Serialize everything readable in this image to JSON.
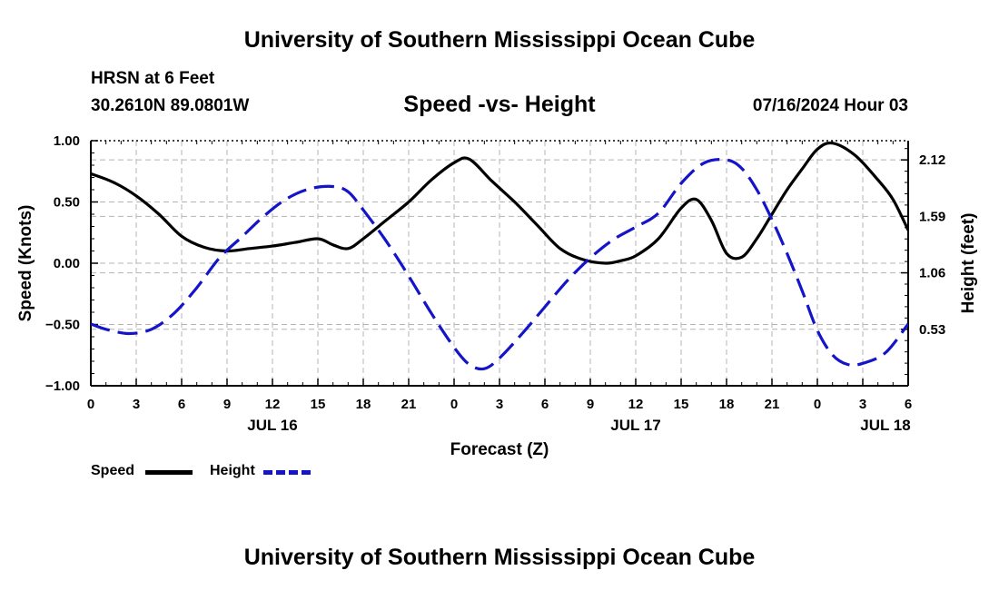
{
  "header": {
    "title": "University of Southern Mississippi Ocean Cube",
    "station": "HRSN at 6 Feet",
    "coords": "30.2610N  89.0801W",
    "subtitle": "Speed -vs- Height",
    "datetime": "07/16/2024 Hour 03"
  },
  "footer": {
    "title": "University of Southern Mississippi Ocean Cube"
  },
  "colors": {
    "speed": "#000000",
    "height": "#1414c8",
    "grid": "#b4b4b4"
  },
  "chart_data": {
    "type": "line",
    "title": "Speed -vs- Height",
    "xlabel": "Forecast (Z)",
    "ylabel": "Speed (Knots)",
    "y2label": "Height (feet)",
    "xlim": [
      0,
      54
    ],
    "ylim": [
      -1.0,
      1.0
    ],
    "y2lim": [
      0.0,
      2.3
    ],
    "x_tick_values": [
      0,
      3,
      6,
      9,
      12,
      15,
      18,
      21,
      24,
      27,
      30,
      33,
      36,
      39,
      42,
      45,
      48,
      51,
      54
    ],
    "x_tick_labels": [
      "0",
      "3",
      "6",
      "9",
      "12",
      "15",
      "18",
      "21",
      "0",
      "3",
      "6",
      "9",
      "12",
      "15",
      "18",
      "21",
      "0",
      "3",
      "6"
    ],
    "y_ticks": [
      1.0,
      0.5,
      0.0,
      -0.5,
      -1.0
    ],
    "y_tick_labels": [
      "1.00",
      "0.50",
      "0.00",
      "−0.50",
      "−1.00"
    ],
    "y2_ticks": [
      2.12,
      1.59,
      1.06,
      0.53
    ],
    "y2_tick_labels": [
      "2.12",
      "1.59",
      "1.06",
      "0.53"
    ],
    "date_labels": [
      {
        "x": 12,
        "label": "JUL 16"
      },
      {
        "x": 36,
        "label": "JUL 17"
      },
      {
        "x": 52.5,
        "label": "JUL 18"
      }
    ],
    "series": [
      {
        "name": "Speed",
        "axis": "left",
        "style": "solid",
        "x": [
          0,
          1.5,
          3,
          4.5,
          6,
          7.5,
          9,
          10.5,
          12,
          13.5,
          15,
          16,
          17,
          18,
          19.5,
          21,
          22.5,
          24,
          25,
          26.5,
          28,
          29.5,
          31,
          32.5,
          34,
          35,
          36,
          37.5,
          39,
          40,
          41,
          42,
          43,
          44,
          45,
          46,
          47,
          48,
          49,
          50.5,
          52,
          53,
          54
        ],
        "values": [
          0.73,
          0.66,
          0.55,
          0.4,
          0.22,
          0.13,
          0.1,
          0.12,
          0.14,
          0.17,
          0.2,
          0.15,
          0.12,
          0.2,
          0.35,
          0.5,
          0.68,
          0.82,
          0.85,
          0.67,
          0.5,
          0.31,
          0.12,
          0.03,
          0.0,
          0.02,
          0.06,
          0.2,
          0.45,
          0.52,
          0.35,
          0.08,
          0.05,
          0.2,
          0.4,
          0.6,
          0.77,
          0.93,
          0.98,
          0.88,
          0.68,
          0.52,
          0.27
        ]
      },
      {
        "name": "Height",
        "axis": "right",
        "style": "dashed",
        "x": [
          0,
          1,
          2.5,
          4,
          5.5,
          7,
          8.5,
          10,
          11.5,
          13,
          14.5,
          16,
          17,
          18,
          19.5,
          21,
          22.5,
          24,
          25,
          26,
          27,
          28.5,
          30,
          31.5,
          33,
          34.5,
          36,
          37.5,
          39,
          40.5,
          42,
          43,
          44,
          45,
          46,
          47,
          48,
          49,
          50,
          51,
          52.5,
          54
        ],
        "values": [
          0.58,
          0.53,
          0.49,
          0.53,
          0.68,
          0.92,
          1.2,
          1.4,
          1.6,
          1.76,
          1.85,
          1.87,
          1.82,
          1.65,
          1.36,
          1.03,
          0.68,
          0.36,
          0.2,
          0.16,
          0.26,
          0.49,
          0.74,
          0.99,
          1.2,
          1.37,
          1.49,
          1.62,
          1.9,
          2.09,
          2.12,
          2.04,
          1.84,
          1.56,
          1.24,
          0.89,
          0.52,
          0.29,
          0.2,
          0.21,
          0.31,
          0.58
        ]
      }
    ],
    "legend": [
      {
        "label": "Speed",
        "style": "solid"
      },
      {
        "label": "Height",
        "style": "dashed"
      }
    ]
  }
}
